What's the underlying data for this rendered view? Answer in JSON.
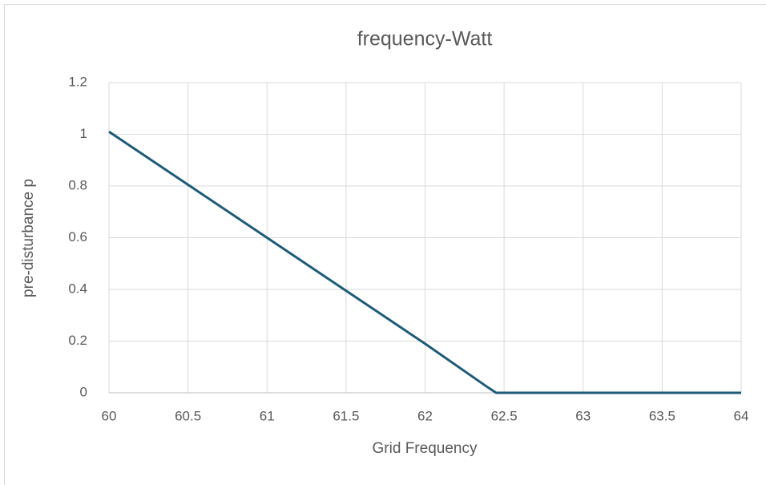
{
  "chart_data": {
    "type": "line",
    "title": "frequency-Watt",
    "x_label": "Grid Frequency",
    "y_label": "pre-disturbance p",
    "series": [
      {
        "name": "pre-disturbance p",
        "color": "#1d5b79",
        "x": [
          60,
          61,
          62,
          62.4,
          62.45,
          63,
          64
        ],
        "values": [
          1.01,
          0.6,
          0.19,
          0.02,
          0,
          0,
          0
        ]
      }
    ],
    "xlim": [
      60,
      64
    ],
    "xticks": [
      60,
      60.5,
      61,
      61.5,
      62,
      62.5,
      63,
      63.5,
      64
    ],
    "ylim": [
      0,
      1.2
    ],
    "yticks": [
      0,
      0.2,
      0.4,
      0.6,
      0.8,
      1,
      1.2
    ],
    "grid": true
  }
}
